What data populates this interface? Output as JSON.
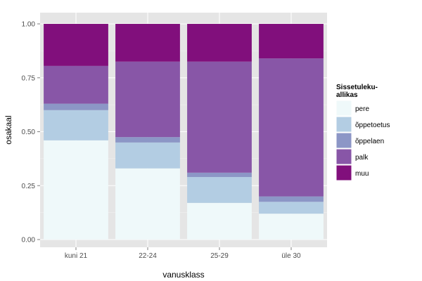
{
  "chart_data": {
    "type": "bar",
    "stacked": true,
    "categories": [
      "kuni 21",
      "22-24",
      "25-29",
      "üle 30"
    ],
    "series": [
      {
        "name": "pere",
        "color": "#eff9fa",
        "values": [
          0.46,
          0.33,
          0.17,
          0.12
        ]
      },
      {
        "name": "õppetoetus",
        "color": "#b3cde3",
        "values": [
          0.14,
          0.12,
          0.12,
          0.055
        ]
      },
      {
        "name": "õppelaen",
        "color": "#8c96c6",
        "values": [
          0.03,
          0.025,
          0.02,
          0.025
        ]
      },
      {
        "name": "palk",
        "color": "#8856a7",
        "values": [
          0.175,
          0.35,
          0.515,
          0.64
        ]
      },
      {
        "name": "muu",
        "color": "#810f7c",
        "values": [
          0.195,
          0.175,
          0.175,
          0.16
        ]
      }
    ],
    "xlabel": "vanusklass",
    "ylabel": "osakaal",
    "ylim": [
      0,
      1
    ],
    "yticks": [
      "0.00",
      "0.25",
      "0.50",
      "0.75",
      "1.00"
    ],
    "ytick_values": [
      0,
      0.25,
      0.5,
      0.75,
      1.0
    ],
    "grid": true,
    "panel_background": "#e5e5e5",
    "legend": {
      "title_lines": [
        "Sissetuleku-",
        "allikas"
      ],
      "placement": "right"
    }
  }
}
